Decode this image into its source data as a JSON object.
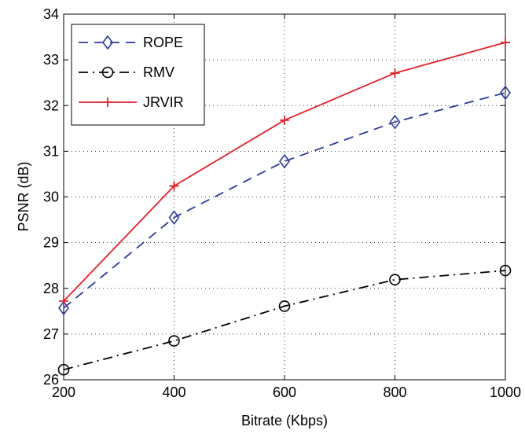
{
  "chart_data": {
    "type": "line",
    "xlabel": "Bitrate (Kbps)",
    "ylabel": "PSNR (dB)",
    "xlim": [
      200,
      1000
    ],
    "ylim": [
      26,
      34
    ],
    "x_ticks": [
      "200",
      "400",
      "600",
      "800",
      "1000"
    ],
    "y_ticks": [
      "26",
      "27",
      "28",
      "29",
      "30",
      "31",
      "32",
      "33",
      "34"
    ],
    "grid": true,
    "legend_position": "top-left",
    "x": [
      200,
      400,
      600,
      800,
      1000
    ],
    "series": [
      {
        "name": "ROPE",
        "values": [
          27.57,
          29.55,
          30.78,
          31.64,
          32.28
        ],
        "color": "#2e3a9a",
        "line_style": "dashed",
        "marker": "diamond"
      },
      {
        "name": "RMV",
        "values": [
          26.22,
          26.85,
          27.61,
          28.19,
          28.39
        ],
        "color": "#000000",
        "line_style": "dash-dot",
        "marker": "circle"
      },
      {
        "name": "JRVIR",
        "values": [
          27.72,
          30.24,
          31.68,
          32.71,
          33.38
        ],
        "color": "#e3212b",
        "line_style": "solid",
        "marker": "plus"
      }
    ]
  }
}
